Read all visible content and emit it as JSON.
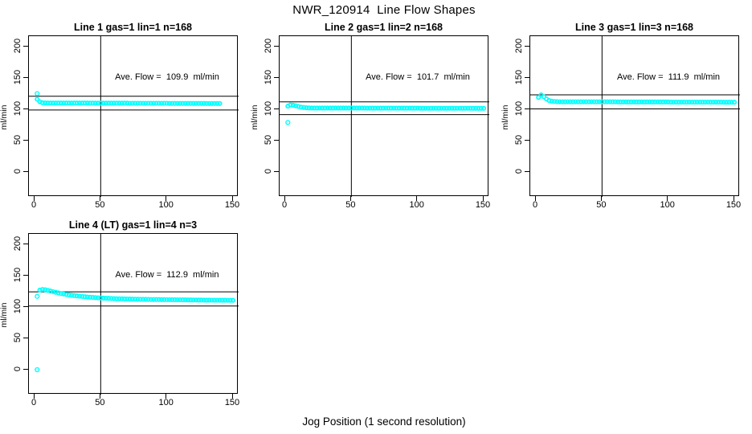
{
  "page": {
    "title": "NWR_120914  Line Flow Shapes",
    "xlabel": "Jog Position (1 second resolution)"
  },
  "colors": {
    "data_points": "#00FFFF",
    "reference_lines": "#000000",
    "background": "#FFFFFF"
  },
  "chart_data": {
    "type": "scatter",
    "title": "NWR_120914  Line Flow Shapes",
    "xlabel": "Jog Position (1 second resolution)",
    "ylabel": "ml/min",
    "x_ticks": [
      0,
      50,
      100,
      150
    ],
    "y_ticks": [
      0,
      50,
      100,
      150,
      200
    ],
    "xlim": [
      -6,
      156
    ],
    "ylim": [
      -40,
      217
    ],
    "grid": false,
    "legend": "none",
    "panels": [
      {
        "title": "Line 1 gas=1 lin=1 n=168",
        "ylabel": "ml/min",
        "annotation": "Ave. Flow =  109.9  ml/min",
        "ave_flow": 109.9,
        "vline_x": 50,
        "hlines": [
          120.9,
          98.9
        ],
        "outliers": [
          [
            2,
            125
          ]
        ],
        "band": {
          "x_start": 2,
          "x_step": 2,
          "y": [
            116,
            112,
            110.5,
            110.2,
            110,
            110,
            110,
            110,
            110,
            110,
            110,
            110,
            110,
            110,
            110,
            110,
            110,
            110,
            110,
            110,
            109.8,
            109.8,
            109.8,
            109.8,
            109.8,
            109.8,
            109.8,
            109.8,
            109.8,
            109.8,
            109.8,
            109.8,
            109.8,
            109.8,
            109.8,
            109.6,
            109.6,
            109.6,
            109.6,
            109.6,
            109.6,
            109.6,
            109.6,
            109.6,
            109.6,
            109.6,
            109.6,
            109.6,
            109.6,
            109.6,
            109.4,
            109.4,
            109.4,
            109.4,
            109.4,
            109.4,
            109.4,
            109.4,
            109.4,
            109.4,
            109.4,
            109.4,
            109.4,
            109.4,
            109.2,
            109.2,
            109.2,
            109.2,
            109.2,
            109.2
          ]
        }
      },
      {
        "title": "Line 2 gas=1 lin=2 n=168",
        "ylabel": "ml/min",
        "annotation": "Ave. Flow =  101.7  ml/min",
        "ave_flow": 101.7,
        "vline_x": 50,
        "hlines": [
          111.9,
          91.5
        ],
        "outliers": [
          [
            2,
            79
          ]
        ],
        "band": {
          "x_start": 2,
          "x_step": 2,
          "y": [
            105,
            107,
            106.5,
            105.5,
            104.5,
            103.5,
            103,
            102.5,
            102.2,
            102,
            102,
            102,
            102,
            102,
            102,
            102,
            102,
            102,
            102,
            102,
            102,
            102,
            102,
            102,
            102,
            102,
            102,
            102,
            102,
            102,
            101.8,
            101.8,
            101.8,
            101.8,
            101.8,
            101.8,
            101.8,
            101.8,
            101.8,
            101.8,
            101.8,
            101.8,
            101.8,
            101.8,
            101.8,
            101.8,
            101.8,
            101.8,
            101.8,
            101.8,
            101.6,
            101.6,
            101.6,
            101.6,
            101.6,
            101.6,
            101.6,
            101.6,
            101.6,
            101.6,
            101.6,
            101.6,
            101.6,
            101.6,
            101.6,
            101.6,
            101.6,
            101.6,
            101.6,
            101.6,
            101.5,
            101.5,
            101.5,
            101.5,
            101.5
          ]
        }
      },
      {
        "title": "Line 3 gas=1 lin=3 n=168",
        "ylabel": "ml/min",
        "annotation": "Ave. Flow =  111.9  ml/min",
        "ave_flow": 111.9,
        "vline_x": 50,
        "hlines": [
          123.1,
          100.7
        ],
        "outliers": [],
        "band": {
          "x_start": 2,
          "x_step": 2,
          "y": [
            119,
            123,
            120,
            116.5,
            114,
            113,
            112.5,
            112.2,
            112,
            112,
            112,
            112,
            112,
            112,
            112,
            112,
            112,
            112,
            112,
            112,
            112,
            112,
            112,
            112,
            112,
            112,
            112,
            112,
            112,
            112,
            111.8,
            111.8,
            111.8,
            111.8,
            111.8,
            111.8,
            111.8,
            111.8,
            111.8,
            111.8,
            111.8,
            111.8,
            111.8,
            111.8,
            111.8,
            111.8,
            111.8,
            111.8,
            111.8,
            111.8,
            111.5,
            111.5,
            111.5,
            111.5,
            111.5,
            111.5,
            111.5,
            111.5,
            111.5,
            111.5,
            111.5,
            111.5,
            111.5,
            111.5,
            111.5,
            111.5,
            111.5,
            111.5,
            111.5,
            111.5,
            111.3,
            111.3,
            111.3,
            111.3,
            111.3
          ]
        }
      },
      {
        "title": "Line 4 (LT) gas=1 lin=4 n=3",
        "ylabel": "ml/min",
        "annotation": "Ave. Flow =  112.9  ml/min",
        "ave_flow": 112.9,
        "vline_x": 50,
        "hlines": [
          124.2,
          101.6
        ],
        "outliers": [
          [
            2,
            0
          ],
          [
            2,
            117
          ]
        ],
        "band": {
          "x_start": 4,
          "x_step": 2,
          "y": [
            127,
            128,
            127.5,
            126.5,
            125.5,
            124.5,
            123.5,
            122.5,
            121.5,
            120.8,
            120,
            119.3,
            118.7,
            118.2,
            117.7,
            117.2,
            116.8,
            116.4,
            116,
            115.6,
            115.3,
            115,
            114.7,
            114.4,
            114.2,
            114,
            113.8,
            113.6,
            113.4,
            113.2,
            113.1,
            113,
            112.9,
            112.8,
            112.7,
            112.6,
            112.5,
            112.4,
            112.3,
            112.2,
            112.2,
            112.1,
            112,
            112,
            111.9,
            111.9,
            111.8,
            111.8,
            111.7,
            111.7,
            111.6,
            111.6,
            111.5,
            111.5,
            111.4,
            111.4,
            111.3,
            111.3,
            111.2,
            111.2,
            111.1,
            111.1,
            111,
            111,
            111,
            110.9,
            110.9,
            110.9,
            110.8,
            110.8,
            110.8,
            110.7,
            110.7,
            110.7
          ]
        }
      }
    ]
  }
}
